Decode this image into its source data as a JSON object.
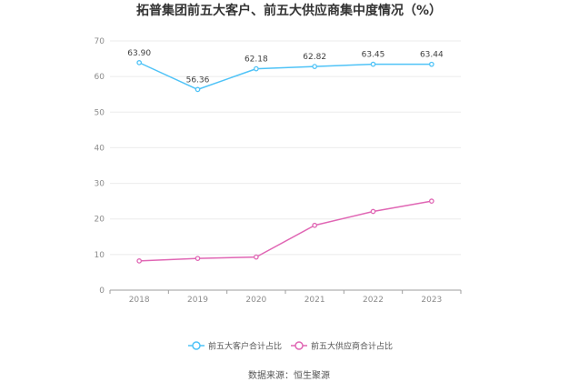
{
  "chart_data": {
    "type": "line",
    "title": "拓普集团前五大客户、前五大供应商集中度情况（%）",
    "categories": [
      "2018",
      "2019",
      "2020",
      "2021",
      "2022",
      "2023"
    ],
    "ylim": [
      0,
      70
    ],
    "yticks": [
      0,
      10,
      20,
      30,
      40,
      50,
      60,
      70
    ],
    "series": [
      {
        "name": "前五大客户合计占比",
        "color": "#4fc3f7",
        "values": [
          63.9,
          56.36,
          62.18,
          62.82,
          63.45,
          63.44
        ],
        "labels": [
          "63.90",
          "56.36",
          "62.18",
          "62.82",
          "63.45",
          "63.44"
        ]
      },
      {
        "name": "前五大供应商合计占比",
        "color": "#e066b4",
        "values": [
          8.2,
          8.9,
          9.3,
          18.2,
          22.1,
          25.0
        ]
      }
    ],
    "source": "数据来源：恒生聚源"
  }
}
